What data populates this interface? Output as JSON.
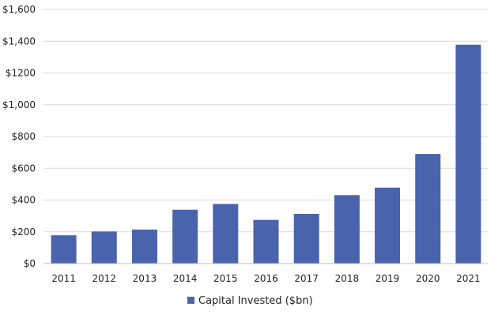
{
  "chart_data": {
    "type": "bar",
    "categories": [
      "2011",
      "2012",
      "2013",
      "2014",
      "2015",
      "2016",
      "2017",
      "2018",
      "2019",
      "2020",
      "2021"
    ],
    "series": [
      {
        "name": "Capital Invested ($bn)",
        "values": [
          178,
          202,
          214,
          339,
          375,
          275,
          313,
          431,
          478,
          690,
          1378
        ],
        "color": "#4a63ad"
      }
    ],
    "yticks": [
      "$0",
      "$200",
      "$400",
      "$600",
      "$800",
      "$1,000",
      "$1200",
      "$1,400",
      "$1,600"
    ],
    "ylim": [
      0,
      1600
    ],
    "grid": true,
    "legend_position": "bottom-center",
    "gridline_color": "#d9d9d9",
    "axis_color": "#bfbfbf"
  }
}
